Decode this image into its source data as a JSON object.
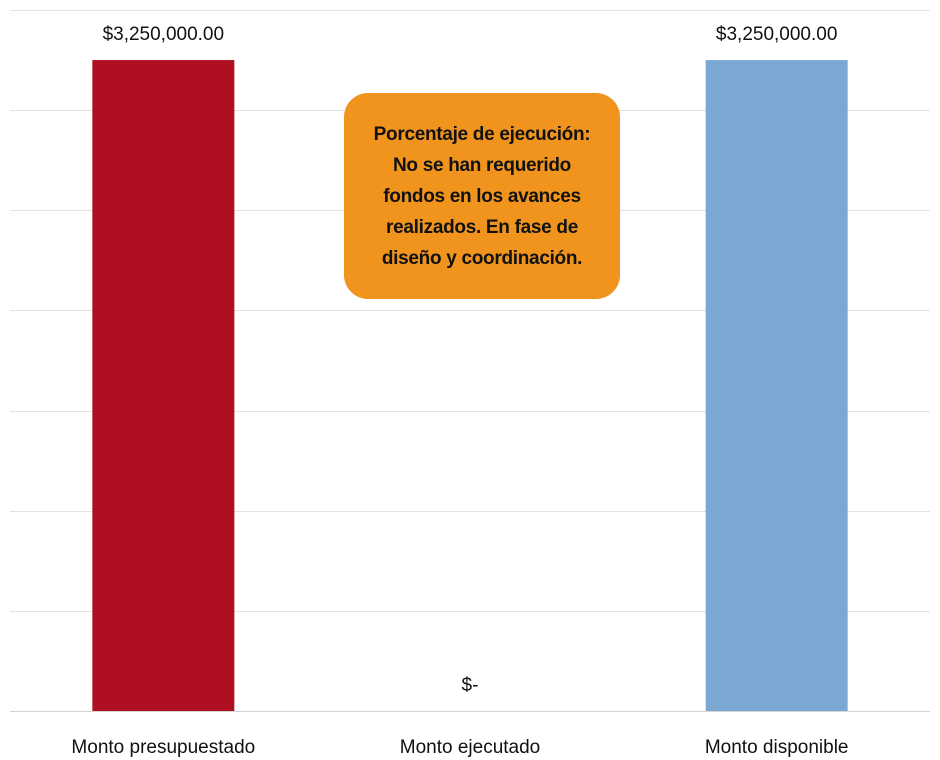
{
  "chart_data": {
    "type": "bar",
    "categories": [
      "Monto presupuestado",
      "Monto ejecutado",
      "Monto disponible"
    ],
    "values": [
      3250000,
      0,
      3250000
    ],
    "data_labels": [
      "$3,250,000.00",
      "$-",
      "$3,250,000.00"
    ],
    "colors": [
      "#ae1022",
      "#ae1022",
      "#7aa8d2"
    ],
    "title": "",
    "xlabel": "",
    "ylabel": "",
    "ylim": [
      0,
      3500000
    ],
    "grid_step": 500000,
    "grid": true,
    "legend": "none",
    "axis_tick_labels_y": false
  },
  "callout": {
    "text": "Porcentaje de ejecución: No se han requerido fondos en los avances realizados. En fase de diseño y coordinación.",
    "background": "#f0941d"
  }
}
